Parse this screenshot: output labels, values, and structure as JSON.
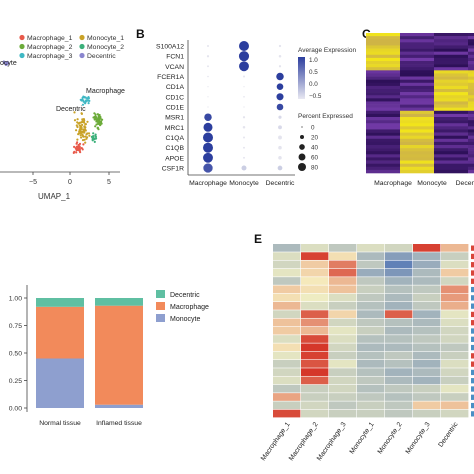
{
  "panels": {
    "b": {
      "letter": "B"
    },
    "c": {
      "letter": "C"
    },
    "e": {
      "letter": "E"
    }
  },
  "chart_data": [
    {
      "id": "umap",
      "type": "scatter",
      "xlabel": "UMAP_1",
      "xticks": [
        -5,
        0,
        5
      ],
      "legend": [
        {
          "name": "Macrophage_1",
          "color": "#e8594a"
        },
        {
          "name": "Monocyte_1",
          "color": "#c9a227"
        },
        {
          "name": "Macrophage_2",
          "color": "#6cab3a"
        },
        {
          "name": "Monocyte_2",
          "color": "#3bb07a"
        },
        {
          "name": "Macrophage_3",
          "color": "#3fb8c4"
        },
        {
          "name": "Decentric",
          "color": "#8a86cf"
        }
      ],
      "annotations": [
        "Macrophage",
        "Decentric",
        "ocyte"
      ]
    },
    {
      "id": "dotplot",
      "type": "scatter",
      "genes": [
        "S100A12",
        "FCN1",
        "VCAN",
        "FCER1A",
        "CD1A",
        "CD1C",
        "CD1E",
        "MSR1",
        "MRC1",
        "C1QA",
        "C1QB",
        "APOE",
        "CSF1R"
      ],
      "groups": [
        "Macrophage",
        "Monocyte",
        "Decentric"
      ],
      "avg_expression": [
        [
          -0.5,
          1.0,
          -0.5
        ],
        [
          -0.5,
          1.0,
          -0.5
        ],
        [
          -0.5,
          1.0,
          -0.5
        ],
        [
          -0.5,
          -0.5,
          1.0
        ],
        [
          -0.5,
          -0.5,
          1.0
        ],
        [
          -0.5,
          -0.5,
          1.0
        ],
        [
          -0.5,
          -0.5,
          0.9
        ],
        [
          0.9,
          -0.5,
          -0.4
        ],
        [
          1.0,
          -0.5,
          -0.4
        ],
        [
          1.0,
          -0.5,
          -0.5
        ],
        [
          1.0,
          -0.5,
          -0.5
        ],
        [
          1.0,
          -0.5,
          -0.5
        ],
        [
          0.8,
          -0.3,
          -0.3
        ]
      ],
      "pct_expressed": [
        [
          3,
          80,
          4
        ],
        [
          4,
          82,
          5
        ],
        [
          3,
          78,
          4
        ],
        [
          2,
          3,
          45
        ],
        [
          1,
          1,
          35
        ],
        [
          1,
          2,
          40
        ],
        [
          1,
          1,
          35
        ],
        [
          45,
          4,
          8
        ],
        [
          65,
          5,
          12
        ],
        [
          80,
          3,
          12
        ],
        [
          80,
          3,
          10
        ],
        [
          78,
          3,
          10
        ],
        [
          70,
          20,
          18
        ]
      ],
      "legend_color_title": "Average Expression",
      "color_ticks": [
        "1.0",
        "0.5",
        "0.0",
        "−0.5"
      ],
      "legend_size_title": "Percent Expressed",
      "size_ticks": [
        0,
        20,
        40,
        60,
        80
      ]
    },
    {
      "id": "heatmap_c",
      "type": "heatmap",
      "columns": [
        "Macrophage",
        "Monocyte",
        "Decentric"
      ],
      "colors": {
        "low": "#2c0f57",
        "mid": "#7a3fb0",
        "high": "#f2e51a"
      }
    },
    {
      "id": "stacked_bar",
      "type": "bar",
      "stacked": true,
      "categories": [
        "Normal tissue",
        "Inflamed tissue"
      ],
      "series": [
        {
          "name": "Monocyte",
          "color": "#8e9fcf",
          "values": [
            0.45,
            0.03
          ]
        },
        {
          "name": "Macrophage",
          "color": "#f28a5b",
          "values": [
            0.47,
            0.9
          ]
        },
        {
          "name": "Decentric",
          "color": "#5fbfa2",
          "values": [
            0.08,
            0.07
          ]
        }
      ],
      "legend": [
        {
          "name": "Decentric",
          "color": "#5fbfa2"
        },
        {
          "name": "Macrophage",
          "color": "#f28a5b"
        },
        {
          "name": "Monocyte",
          "color": "#8e9fcf"
        }
      ],
      "yticks": [
        "0.00",
        "0.25",
        "0.50",
        "0.75",
        "1.00"
      ],
      "ylim": [
        0,
        1
      ]
    },
    {
      "id": "heatmap_e",
      "type": "heatmap",
      "columns": [
        "Macrophage_1",
        "Macrophage_2",
        "Macrophage_3",
        "Monocyte_1",
        "Monocyte_2",
        "Monocyte_3",
        "Decentric"
      ],
      "z_range": [
        -2,
        2
      ],
      "colors": {
        "low": "#3b64b4",
        "mid": "#f7f3c3",
        "high": "#d32d22"
      },
      "values": [
        [
          -0.8,
          -0.3,
          -0.6,
          -0.3,
          -0.4,
          1.8,
          0.6
        ],
        [
          -0.3,
          1.8,
          0.2,
          -0.8,
          -1.2,
          -0.9,
          -0.5
        ],
        [
          -0.4,
          0.4,
          1.2,
          -0.6,
          -1.6,
          -1.0,
          -0.3
        ],
        [
          -0.2,
          0.3,
          1.4,
          -1.0,
          -1.3,
          -0.8,
          0.4
        ],
        [
          -0.6,
          0.1,
          0.6,
          -0.6,
          -0.9,
          -0.8,
          -0.4
        ],
        [
          0.4,
          0.2,
          0.5,
          -0.5,
          -0.7,
          -0.6,
          1.0
        ],
        [
          0.2,
          -0.1,
          -0.3,
          -0.6,
          -0.8,
          -0.5,
          0.9
        ],
        [
          0.6,
          -0.3,
          -0.5,
          -0.7,
          -0.9,
          -0.6,
          0.7
        ],
        [
          -0.4,
          1.5,
          0.3,
          -0.8,
          1.5,
          -0.9,
          -0.2
        ],
        [
          0.5,
          1.0,
          -0.4,
          -0.6,
          -0.7,
          -0.8,
          -0.3
        ],
        [
          0.4,
          0.6,
          -0.2,
          -0.5,
          -0.8,
          -0.7,
          -0.4
        ],
        [
          -0.3,
          1.7,
          -0.3,
          -0.7,
          -0.7,
          -0.6,
          -0.4
        ],
        [
          0.2,
          1.9,
          -0.4,
          -0.8,
          -0.8,
          -0.7,
          -0.6
        ],
        [
          -0.2,
          1.8,
          -0.5,
          -0.7,
          -0.6,
          -0.8,
          -0.5
        ],
        [
          -0.5,
          1.6,
          -0.2,
          -0.8,
          -0.7,
          -0.9,
          -0.3
        ],
        [
          -0.4,
          1.9,
          -0.5,
          -0.7,
          -0.9,
          -0.8,
          -0.4
        ],
        [
          -0.3,
          1.5,
          -0.4,
          -0.6,
          -0.8,
          -0.9,
          -0.5
        ],
        [
          -0.6,
          -0.5,
          -0.4,
          -0.7,
          -0.6,
          -0.5,
          -0.2
        ],
        [
          0.8,
          -0.5,
          -0.5,
          -0.6,
          -0.7,
          -0.6,
          -0.5
        ],
        [
          -0.5,
          -0.4,
          -0.6,
          -0.5,
          -0.6,
          0.4,
          0.5
        ],
        [
          1.7,
          -0.4,
          -0.5,
          -0.5,
          -0.6,
          -0.5,
          -0.4
        ]
      ]
    }
  ]
}
